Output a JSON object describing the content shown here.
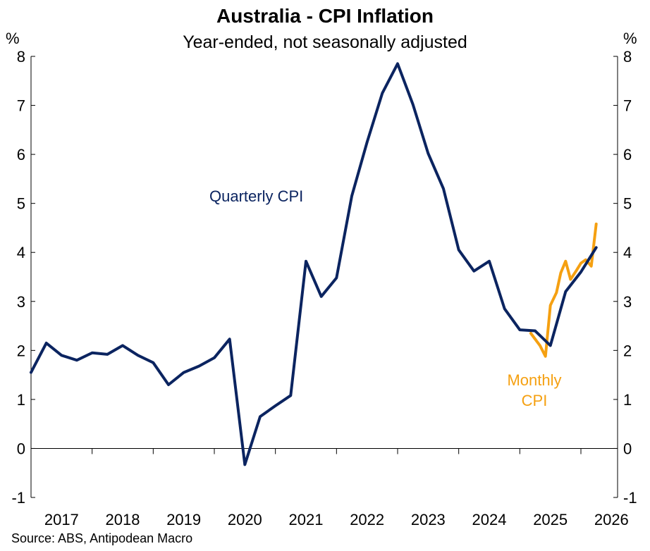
{
  "chart_data": {
    "type": "line",
    "title": "Australia - CPI Inflation",
    "subtitle": "Year-ended, not seasonally adjusted",
    "y_unit_left": "%",
    "y_unit_right": "%",
    "ylim": [
      -1,
      8
    ],
    "yticks": [
      -1,
      0,
      1,
      2,
      3,
      4,
      5,
      6,
      7,
      8
    ],
    "xlim": [
      2017.0,
      2026.6
    ],
    "x_labels": [
      "2017",
      "2018",
      "2019",
      "2020",
      "2021",
      "2022",
      "2023",
      "2024",
      "2025",
      "2026"
    ],
    "source": "Source: ABS, Antipodean Macro",
    "colors": {
      "quarterly": "#0b2460",
      "monthly": "#f5a011",
      "axis": "#000000"
    },
    "series": [
      {
        "name": "Quarterly CPI",
        "label": "Quarterly CPI",
        "color": "#0b2460",
        "points": [
          [
            2017.0,
            1.55
          ],
          [
            2017.25,
            2.15
          ],
          [
            2017.5,
            1.9
          ],
          [
            2017.75,
            1.8
          ],
          [
            2018.0,
            1.95
          ],
          [
            2018.25,
            1.92
          ],
          [
            2018.5,
            2.1
          ],
          [
            2018.75,
            1.9
          ],
          [
            2019.0,
            1.75
          ],
          [
            2019.25,
            1.3
          ],
          [
            2019.5,
            1.55
          ],
          [
            2019.75,
            1.68
          ],
          [
            2020.0,
            1.85
          ],
          [
            2020.25,
            2.23
          ],
          [
            2020.5,
            -0.33
          ],
          [
            2020.75,
            0.65
          ],
          [
            2021.0,
            0.87
          ],
          [
            2021.25,
            1.08
          ],
          [
            2021.5,
            3.82
          ],
          [
            2021.75,
            3.1
          ],
          [
            2022.0,
            3.48
          ],
          [
            2022.25,
            5.15
          ],
          [
            2022.5,
            6.25
          ],
          [
            2022.75,
            7.25
          ],
          [
            2023.0,
            7.85
          ],
          [
            2023.25,
            7.02
          ],
          [
            2023.5,
            6.02
          ],
          [
            2023.75,
            5.3
          ],
          [
            2024.0,
            4.05
          ],
          [
            2024.25,
            3.62
          ],
          [
            2024.5,
            3.82
          ],
          [
            2024.75,
            2.85
          ],
          [
            2025.0,
            2.42
          ],
          [
            2025.25,
            2.4
          ],
          [
            2025.5,
            2.1
          ],
          [
            2025.75,
            3.2
          ],
          [
            2026.0,
            3.6
          ],
          [
            2026.25,
            4.1
          ]
        ]
      },
      {
        "name": "Monthly CPI",
        "label_lines": [
          "Monthly",
          "CPI"
        ],
        "color": "#f5a011",
        "points": [
          [
            2025.18,
            2.35
          ],
          [
            2025.33,
            2.1
          ],
          [
            2025.42,
            1.88
          ],
          [
            2025.5,
            2.92
          ],
          [
            2025.6,
            3.18
          ],
          [
            2025.67,
            3.58
          ],
          [
            2025.75,
            3.82
          ],
          [
            2025.83,
            3.45
          ],
          [
            2025.92,
            3.62
          ],
          [
            2026.0,
            3.78
          ],
          [
            2026.08,
            3.85
          ],
          [
            2026.17,
            3.72
          ],
          [
            2026.25,
            4.58
          ]
        ]
      }
    ]
  }
}
